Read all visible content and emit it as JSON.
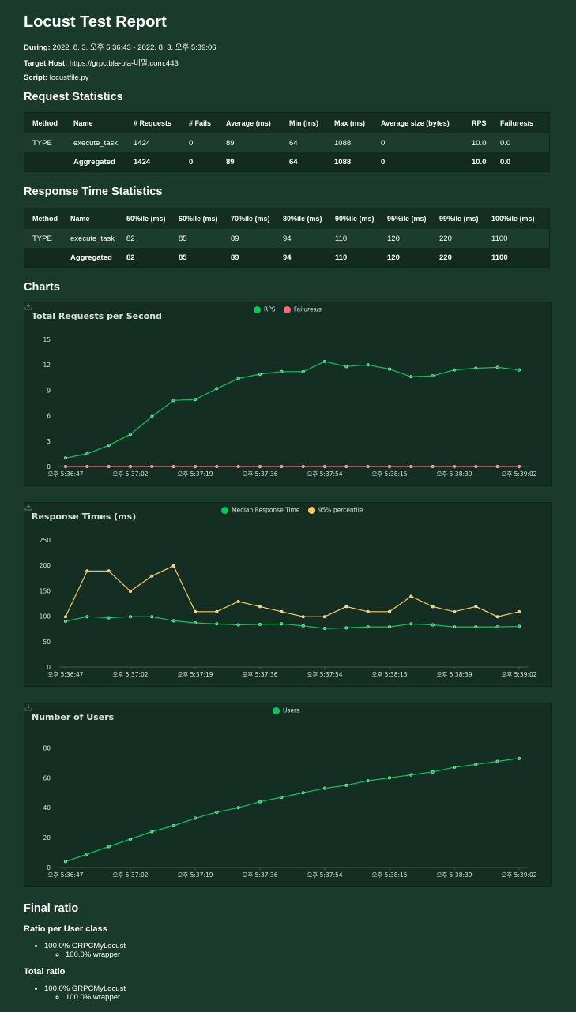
{
  "report": {
    "title": "Locust Test Report",
    "during_label": "During:",
    "during_value": "2022. 8. 3. 오후 5:36:43 - 2022. 8. 3. 오후 5:39:06",
    "target_label": "Target Host:",
    "target_value": "https://grpc.bla-bla-비밀.com:443",
    "script_label": "Script:",
    "script_value": "locustfile.py"
  },
  "request_stats": {
    "heading": "Request Statistics",
    "headers": [
      "Method",
      "Name",
      "# Requests",
      "# Fails",
      "Average (ms)",
      "Min (ms)",
      "Max (ms)",
      "Average size (bytes)",
      "RPS",
      "Failures/s"
    ],
    "rows": [
      [
        "TYPE",
        "execute_task",
        "1424",
        "0",
        "89",
        "64",
        "1088",
        "0",
        "10.0",
        "0.0"
      ],
      [
        "",
        "Aggregated",
        "1424",
        "0",
        "89",
        "64",
        "1088",
        "0",
        "10.0",
        "0.0"
      ]
    ]
  },
  "response_stats": {
    "heading": "Response Time Statistics",
    "headers": [
      "Method",
      "Name",
      "50%ile (ms)",
      "60%ile (ms)",
      "70%ile (ms)",
      "80%ile (ms)",
      "90%ile (ms)",
      "95%ile (ms)",
      "99%ile (ms)",
      "100%ile (ms)"
    ],
    "rows": [
      [
        "TYPE",
        "execute_task",
        "82",
        "85",
        "89",
        "94",
        "110",
        "120",
        "220",
        "1100"
      ],
      [
        "",
        "Aggregated",
        "82",
        "85",
        "89",
        "94",
        "110",
        "120",
        "220",
        "1100"
      ]
    ]
  },
  "charts_heading": "Charts",
  "colors": {
    "green": "#00ca5a",
    "red": "#ff6d6d",
    "yellow": "#ffca5a",
    "background": "#1a3a2c",
    "panel": "#152e23"
  },
  "chart_data": [
    {
      "type": "line",
      "title": "Total Requests per Second",
      "x_ticks": [
        "오후 5:36:47",
        "오후 5:37:02",
        "오후 5:37:19",
        "오후 5:37:36",
        "오후 5:37:54",
        "오후 5:38:15",
        "오후 5:38:39",
        "오후 5:39:02"
      ],
      "ylim": [
        0,
        15
      ],
      "y_ticks": [
        0,
        3,
        6,
        9,
        12,
        15
      ],
      "grid": false,
      "legend_placement": "top-center",
      "series": [
        {
          "name": "RPS",
          "color": "#00ca5a",
          "values": [
            1.0,
            1.5,
            2.5,
            3.8,
            5.9,
            7.8,
            7.9,
            9.2,
            10.4,
            10.9,
            11.2,
            11.2,
            12.4,
            11.8,
            12.0,
            11.5,
            10.6,
            10.7,
            11.4,
            11.6,
            11.7,
            11.4
          ]
        },
        {
          "name": "Failures/s",
          "color": "#ff6d6d",
          "values": [
            0,
            0,
            0,
            0,
            0,
            0,
            0,
            0,
            0,
            0,
            0,
            0,
            0,
            0,
            0,
            0,
            0,
            0,
            0,
            0,
            0,
            0
          ]
        }
      ]
    },
    {
      "type": "line",
      "title": "Response Times (ms)",
      "x_ticks": [
        "오후 5:36:47",
        "오후 5:37:02",
        "오후 5:37:19",
        "오후 5:37:36",
        "오후 5:37:54",
        "오후 5:38:15",
        "오후 5:38:39",
        "오후 5:39:02"
      ],
      "ylim": [
        0,
        250
      ],
      "y_ticks": [
        0,
        50,
        100,
        150,
        200,
        250
      ],
      "grid": false,
      "legend_placement": "top-center",
      "series": [
        {
          "name": "Median Response Time",
          "color": "#00ca5a",
          "values": [
            90,
            99,
            97,
            99,
            99,
            91,
            87,
            85,
            83,
            84,
            85,
            81,
            76,
            77,
            79,
            79,
            85,
            83,
            79,
            79,
            79,
            80
          ]
        },
        {
          "name": "95% percentile",
          "color": "#ffca5a",
          "values": [
            99,
            189,
            189,
            149,
            179,
            199,
            109,
            109,
            129,
            119,
            109,
            99,
            99,
            119,
            109,
            109,
            139,
            119,
            109,
            119,
            99,
            109
          ]
        }
      ]
    },
    {
      "type": "line",
      "title": "Number of Users",
      "x_ticks": [
        "오후 5:36:47",
        "오후 5:37:02",
        "오후 5:37:19",
        "오후 5:37:36",
        "오후 5:37:54",
        "오후 5:38:15",
        "오후 5:38:39",
        "오후 5:39:02"
      ],
      "ylim": [
        0,
        85
      ],
      "y_ticks": [
        0,
        20,
        40,
        60,
        80
      ],
      "grid": false,
      "legend_placement": "top-center",
      "series": [
        {
          "name": "Users",
          "color": "#00ca5a",
          "values": [
            4,
            9,
            14,
            19,
            24,
            28,
            33,
            37,
            40,
            44,
            47,
            50,
            53,
            55,
            58,
            60,
            62,
            64,
            67,
            69,
            71,
            73
          ]
        }
      ]
    }
  ],
  "final_ratio": {
    "heading": "Final ratio",
    "per_class_heading": "Ratio per User class",
    "per_class_item": "100.0% GRPCMyLocust",
    "per_class_sub": "100.0% wrapper",
    "total_heading": "Total ratio",
    "total_item": "100.0% GRPCMyLocust",
    "total_sub": "100.0% wrapper"
  }
}
